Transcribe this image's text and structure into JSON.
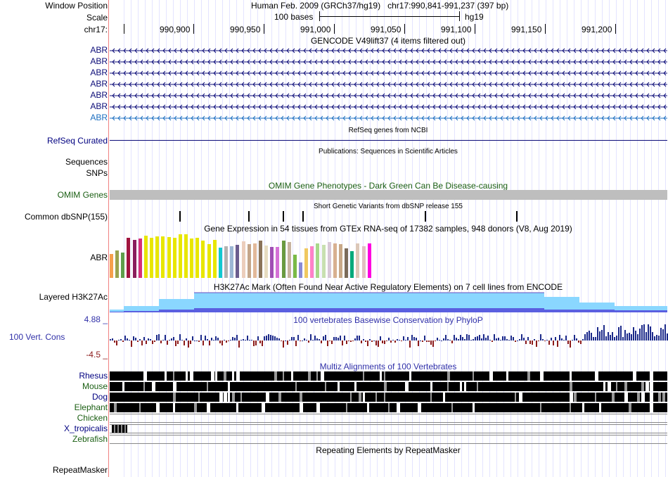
{
  "header": {
    "window_position_label": "Window Position",
    "scale_label": "Scale",
    "chrom_label": "chr17:",
    "assembly_title": "Human Feb. 2009 (GRCh37/hg19)",
    "position": "chr17:990,841-991,237 (397 bp)",
    "scale_text": "100 bases",
    "db_name": "hg19",
    "ruler_ticks": [
      "990,900",
      "990,950",
      "991,000",
      "991,050",
      "991,100",
      "991,150",
      "991,200"
    ]
  },
  "tracks": {
    "gencode": {
      "title": "GENCODE V49lift37 (4 items filtered out)",
      "items": [
        "ABR",
        "ABR",
        "ABR",
        "ABR",
        "ABR",
        "ABR",
        "ABR"
      ]
    },
    "refseq": {
      "title": "RefSeq genes from NCBI",
      "label": "RefSeq Curated"
    },
    "publications": {
      "title": "Publications: Sequences in Scientific Articles",
      "label_1": "Sequences",
      "label_2": "SNPs"
    },
    "omim": {
      "title": "OMIM Gene Phenotypes - Dark Green Can Be Disease-causing",
      "label": "OMIM Genes"
    },
    "dbsnp": {
      "title": "Short Genetic Variants from dbSNP release 155",
      "label": "Common dbSNP(155)"
    },
    "gtex": {
      "title": "Gene Expression in 54 tissues from GTEx RNA-seq of 17382 samples, 948 donors (V8, Aug 2019)",
      "label": "ABR"
    },
    "h3k27ac": {
      "title": "H3K27Ac Mark (Often Found Near Active Regulatory Elements) on 7 cell lines from ENCODE",
      "label": "Layered H3K27Ac"
    },
    "phylop": {
      "title": "100 vertebrates Basewise Conservation by PhyloP",
      "label": "100 Vert. Cons",
      "max": "4.88 _",
      "min": "-4.5 _"
    },
    "multiz": {
      "title": "Multiz Alignments of 100 Vertebrates",
      "species": [
        "Rhesus",
        "Mouse",
        "Dog",
        "Elephant",
        "Chicken",
        "X_tropicalis",
        "Zebrafish"
      ]
    },
    "repeatmasker": {
      "title": "Repeating Elements by RepeatMasker",
      "label": "RepeatMasker"
    }
  },
  "colors": {
    "gene_navy": "#0c0c78",
    "gene_light": "#1b6ec0",
    "omim_gray": "#bebebe",
    "h3k27ac_light": "#8ad7ff",
    "h3k27ac_dark": "#5a5fe0",
    "phylop_pos": "#1c2a8a",
    "phylop_neg": "#8b1a1a",
    "gtex": [
      "#f6a04c",
      "#9aa34d",
      "#5e9e4a",
      "#a0133f",
      "#8a1d5c",
      "#d63078",
      "#e8e600",
      "#e8e600",
      "#e8e600",
      "#e8e600",
      "#e8e600",
      "#e8e600",
      "#e8e600",
      "#e8e600",
      "#e8e600",
      "#e8e600",
      "#e8e600",
      "#e8e600",
      "#e8e600",
      "#10c8d0",
      "#b2b2b2",
      "#9cb6d4",
      "#6b5c8e",
      "#eccebc",
      "#c4a68a",
      "#e2b89a",
      "#8a7358",
      "#e6dcc0",
      "#a04eb4",
      "#d470d6",
      "#6a9a40",
      "#c8b4a0",
      "#7aba46",
      "#8a8ad4",
      "#f0c860",
      "#ff82c8",
      "#a8d88a",
      "#c8e0b0",
      "#d8c8d8",
      "#d8b090",
      "#c8a888",
      "#7a6a5a",
      "#00a87a",
      "#dcc8b8",
      "#e0c0c0",
      "#ff00e0"
    ]
  }
}
